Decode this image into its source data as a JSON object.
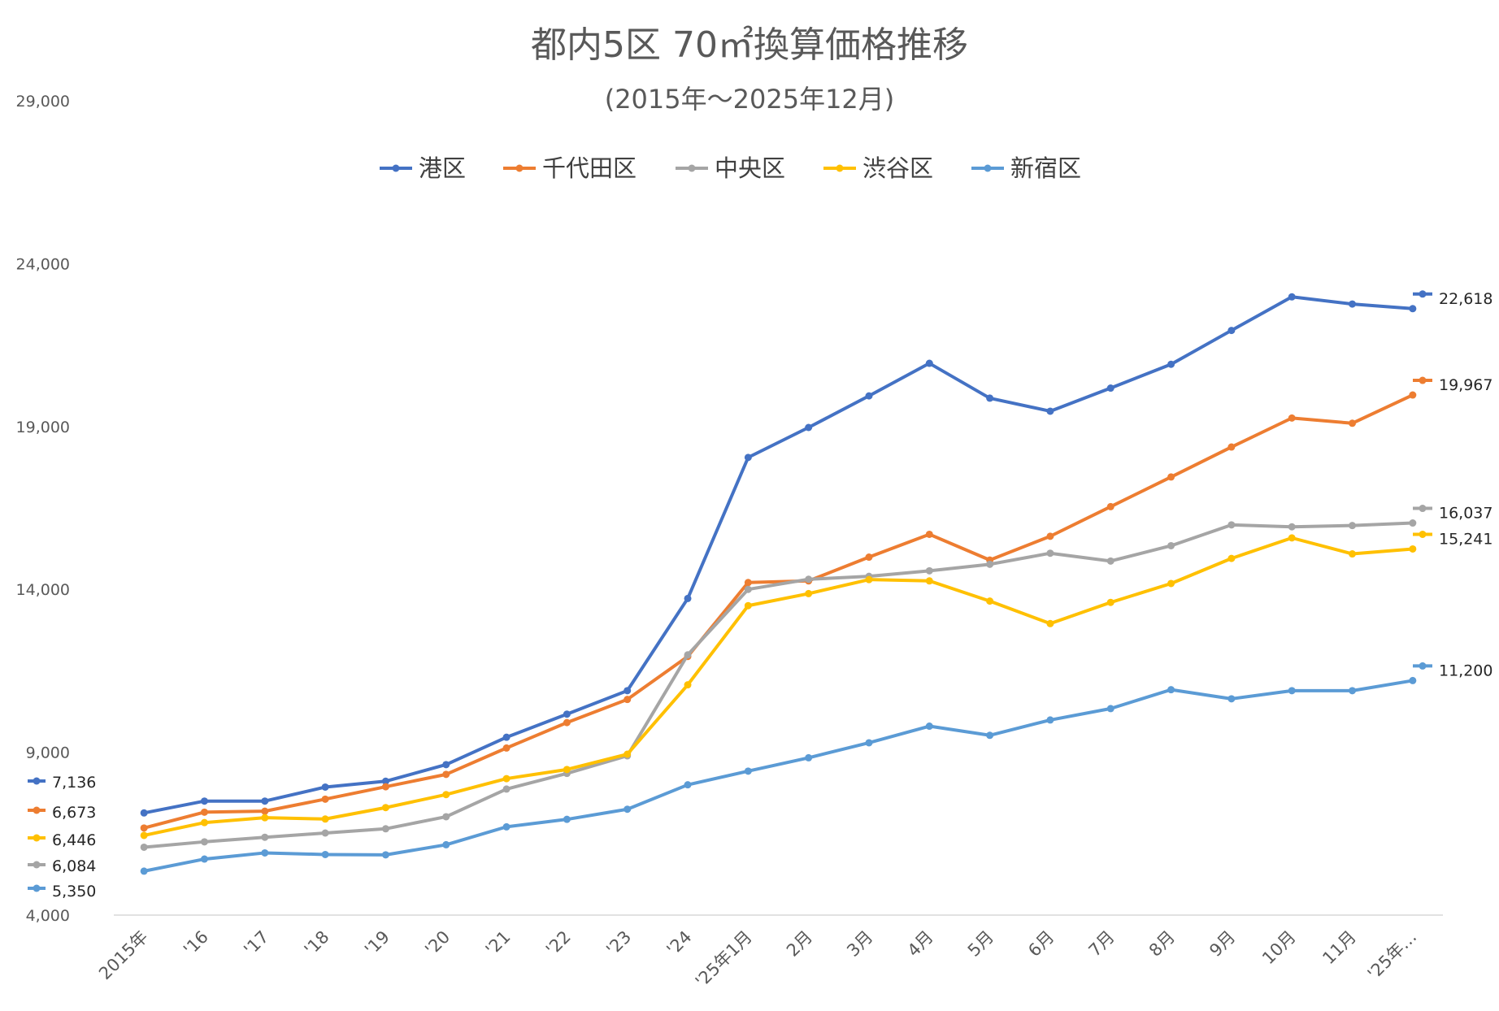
{
  "chart_data": {
    "type": "line",
    "title": "都内5区 70㎡換算価格推移",
    "subtitle": "(2015年～2025年12月)",
    "legend_position": "top",
    "grid": false,
    "ylim": [
      4000,
      29000
    ],
    "yticks": [
      4000,
      9000,
      14000,
      19000,
      24000,
      29000
    ],
    "ytick_labels": [
      "4,000",
      "9,000",
      "14,000",
      "19,000",
      "24,000",
      "29,000"
    ],
    "categories": [
      "2015年",
      "'16",
      "'17",
      "'18",
      "'19",
      "'20",
      "'21",
      "'22",
      "'23",
      "'24",
      "'25年1月",
      "2月",
      "3月",
      "4月",
      "5月",
      "6月",
      "7月",
      "8月",
      "9月",
      "10月",
      "11月",
      "'25年…"
    ],
    "series": [
      {
        "name": "港区",
        "color": "#4472C4",
        "start_label": "7,136",
        "end_label": "22,618",
        "values": [
          7136,
          7500,
          7500,
          7930,
          8110,
          8620,
          9460,
          10170,
          10890,
          13720,
          18050,
          18970,
          19940,
          20940,
          19870,
          19470,
          20180,
          20910,
          21950,
          22980,
          22760,
          22618
        ]
      },
      {
        "name": "千代田区",
        "color": "#ED7D31",
        "start_label": "6,673",
        "end_label": "19,967",
        "values": [
          6673,
          7160,
          7190,
          7560,
          7940,
          8320,
          9130,
          9910,
          10620,
          11940,
          14210,
          14260,
          14990,
          15690,
          14900,
          15630,
          16540,
          17450,
          18370,
          19260,
          19100,
          19967
        ]
      },
      {
        "name": "中央区",
        "color": "#A5A5A5",
        "start_label": "6,084",
        "end_label": "16,037",
        "values": [
          6084,
          6250,
          6390,
          6520,
          6650,
          7020,
          7870,
          8350,
          8890,
          11990,
          14000,
          14310,
          14400,
          14570,
          14770,
          15110,
          14870,
          15340,
          15980,
          15920,
          15960,
          16037
        ]
      },
      {
        "name": "渋谷区",
        "color": "#FFC000",
        "start_label": "6,446",
        "end_label": "15,241",
        "values": [
          6446,
          6840,
          6990,
          6950,
          7300,
          7700,
          8190,
          8470,
          8940,
          11070,
          13500,
          13870,
          14300,
          14260,
          13640,
          12950,
          13600,
          14180,
          14950,
          15580,
          15090,
          15241
        ]
      },
      {
        "name": "新宿区",
        "color": "#5B9BD5",
        "start_label": "5,350",
        "end_label": "11,200",
        "values": [
          5350,
          5720,
          5910,
          5860,
          5850,
          6160,
          6710,
          6940,
          7250,
          8000,
          8420,
          8830,
          9290,
          9800,
          9520,
          9990,
          10340,
          10920,
          10640,
          10890,
          10890,
          11200
        ]
      }
    ]
  }
}
